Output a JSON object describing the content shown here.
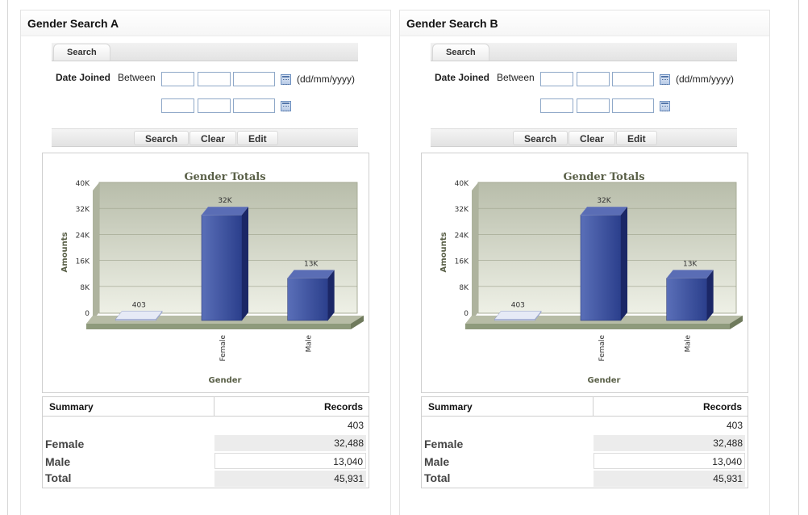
{
  "panels": [
    {
      "title": "Gender Search A",
      "search_tab": "Search",
      "date_joined_label": "Date Joined",
      "between_label": "Between",
      "date_format": "(dd/mm/yyyy)",
      "buttons": {
        "search": "Search",
        "clear": "Clear",
        "edit": "Edit"
      },
      "summary": {
        "header_label": "Summary",
        "header_value": "Records",
        "rows": [
          {
            "label": "",
            "value": "403"
          },
          {
            "label": "Female",
            "value": "32,488"
          },
          {
            "label": "Male",
            "value": "13,040"
          },
          {
            "label": "Total",
            "value": "45,931"
          }
        ]
      }
    },
    {
      "title": "Gender Search B",
      "search_tab": "Search",
      "date_joined_label": "Date Joined",
      "between_label": "Between",
      "date_format": "(dd/mm/yyyy)",
      "buttons": {
        "search": "Search",
        "clear": "Clear",
        "edit": "Edit"
      },
      "summary": {
        "header_label": "Summary",
        "header_value": "Records",
        "rows": [
          {
            "label": "",
            "value": "403"
          },
          {
            "label": "Female",
            "value": "32,488"
          },
          {
            "label": "Male",
            "value": "13,040"
          },
          {
            "label": "Total",
            "value": "45,931"
          }
        ]
      }
    }
  ],
  "chart_data": [
    {
      "type": "bar",
      "title": "Gender Totals",
      "xlabel": "Gender",
      "ylabel": "Amounts",
      "categories": [
        "",
        "Female",
        "Male"
      ],
      "values": [
        403,
        32488,
        13040
      ],
      "data_labels": [
        "403",
        "32K",
        "13K"
      ],
      "yticks": [
        "0",
        "8K",
        "16K",
        "24K",
        "32K",
        "40K"
      ],
      "ylim": [
        0,
        40000
      ],
      "grid": true,
      "colors": {
        "bar": "#2b3f8c",
        "bar_light": "#c8d0ea",
        "plot_bg": "#c9cdbe",
        "floor": "#8e9a7c"
      }
    },
    {
      "type": "bar",
      "title": "Gender Totals",
      "xlabel": "Gender",
      "ylabel": "Amounts",
      "categories": [
        "",
        "Female",
        "Male"
      ],
      "values": [
        403,
        32488,
        13040
      ],
      "data_labels": [
        "403",
        "32K",
        "13K"
      ],
      "yticks": [
        "0",
        "8K",
        "16K",
        "24K",
        "32K",
        "40K"
      ],
      "ylim": [
        0,
        40000
      ],
      "grid": true,
      "colors": {
        "bar": "#2b3f8c",
        "bar_light": "#c8d0ea",
        "plot_bg": "#c9cdbe",
        "floor": "#8e9a7c"
      }
    }
  ]
}
